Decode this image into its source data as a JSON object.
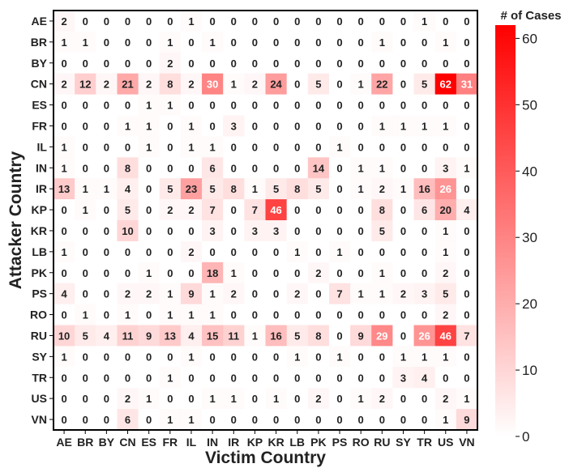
{
  "chart_data": {
    "type": "heatmap",
    "xlabel": "Victim Country",
    "ylabel": "Attacker Country",
    "colorbar": {
      "title": "# of Cases",
      "ticks": [
        0,
        10,
        20,
        30,
        40,
        50,
        60
      ],
      "range": [
        0,
        62
      ],
      "color_min": "#ffffff",
      "color_max": "#ff0000"
    },
    "x_categories": [
      "AE",
      "BR",
      "BY",
      "CN",
      "ES",
      "FR",
      "IL",
      "IN",
      "IR",
      "KP",
      "KR",
      "LB",
      "PK",
      "PS",
      "RO",
      "RU",
      "SY",
      "TR",
      "US",
      "VN"
    ],
    "y_categories": [
      "AE",
      "BR",
      "BY",
      "CN",
      "ES",
      "FR",
      "IL",
      "IN",
      "IR",
      "KP",
      "KR",
      "LB",
      "PK",
      "PS",
      "RO",
      "RU",
      "SY",
      "TR",
      "US",
      "VN"
    ],
    "values": [
      [
        2,
        0,
        0,
        0,
        0,
        0,
        1,
        0,
        0,
        0,
        0,
        0,
        0,
        0,
        0,
        0,
        0,
        1,
        0,
        0
      ],
      [
        1,
        1,
        0,
        0,
        0,
        1,
        0,
        1,
        0,
        0,
        0,
        0,
        0,
        0,
        0,
        1,
        0,
        0,
        1,
        0
      ],
      [
        0,
        0,
        0,
        0,
        0,
        2,
        0,
        0,
        0,
        0,
        0,
        0,
        0,
        0,
        0,
        0,
        0,
        0,
        0,
        0
      ],
      [
        2,
        12,
        2,
        21,
        2,
        8,
        2,
        30,
        1,
        2,
        24,
        0,
        5,
        0,
        1,
        22,
        0,
        5,
        62,
        31
      ],
      [
        0,
        0,
        0,
        0,
        1,
        1,
        0,
        0,
        0,
        0,
        0,
        0,
        0,
        0,
        0,
        0,
        0,
        0,
        0,
        0
      ],
      [
        0,
        0,
        0,
        1,
        1,
        0,
        1,
        0,
        3,
        0,
        0,
        0,
        0,
        0,
        0,
        1,
        1,
        1,
        1,
        0
      ],
      [
        1,
        0,
        0,
        0,
        1,
        0,
        1,
        1,
        0,
        0,
        0,
        0,
        0,
        1,
        0,
        0,
        0,
        0,
        0,
        0
      ],
      [
        1,
        0,
        0,
        8,
        0,
        0,
        0,
        6,
        0,
        0,
        0,
        0,
        14,
        0,
        1,
        1,
        0,
        0,
        3,
        1
      ],
      [
        13,
        1,
        1,
        4,
        0,
        5,
        23,
        5,
        8,
        1,
        5,
        8,
        5,
        0,
        1,
        2,
        1,
        16,
        26,
        0
      ],
      [
        0,
        1,
        0,
        5,
        0,
        2,
        2,
        7,
        0,
        7,
        46,
        0,
        0,
        0,
        0,
        8,
        0,
        6,
        20,
        4
      ],
      [
        0,
        0,
        0,
        10,
        0,
        0,
        0,
        3,
        0,
        3,
        3,
        0,
        0,
        0,
        0,
        5,
        0,
        0,
        1,
        0
      ],
      [
        1,
        0,
        0,
        0,
        0,
        0,
        2,
        0,
        0,
        0,
        0,
        1,
        0,
        1,
        0,
        0,
        0,
        0,
        1,
        0
      ],
      [
        0,
        0,
        0,
        0,
        1,
        0,
        0,
        18,
        1,
        0,
        0,
        0,
        2,
        0,
        0,
        1,
        0,
        0,
        2,
        0
      ],
      [
        4,
        0,
        0,
        2,
        2,
        1,
        9,
        1,
        2,
        0,
        0,
        2,
        0,
        7,
        1,
        1,
        2,
        3,
        5,
        0
      ],
      [
        0,
        1,
        0,
        1,
        0,
        1,
        1,
        1,
        0,
        0,
        0,
        0,
        0,
        0,
        0,
        0,
        0,
        0,
        2,
        0
      ],
      [
        10,
        5,
        4,
        11,
        9,
        13,
        4,
        15,
        11,
        1,
        16,
        5,
        8,
        0,
        9,
        29,
        0,
        26,
        46,
        7
      ],
      [
        1,
        0,
        0,
        0,
        0,
        0,
        1,
        0,
        0,
        0,
        0,
        1,
        0,
        1,
        0,
        0,
        1,
        1,
        1,
        0
      ],
      [
        0,
        0,
        0,
        0,
        0,
        1,
        0,
        0,
        0,
        0,
        0,
        0,
        0,
        0,
        0,
        0,
        3,
        4,
        0,
        0
      ],
      [
        0,
        0,
        0,
        2,
        1,
        0,
        0,
        1,
        1,
        0,
        1,
        0,
        2,
        0,
        1,
        2,
        0,
        0,
        2,
        1
      ],
      [
        0,
        0,
        0,
        6,
        0,
        1,
        1,
        0,
        0,
        0,
        0,
        0,
        0,
        0,
        0,
        0,
        0,
        0,
        1,
        9
      ]
    ]
  }
}
